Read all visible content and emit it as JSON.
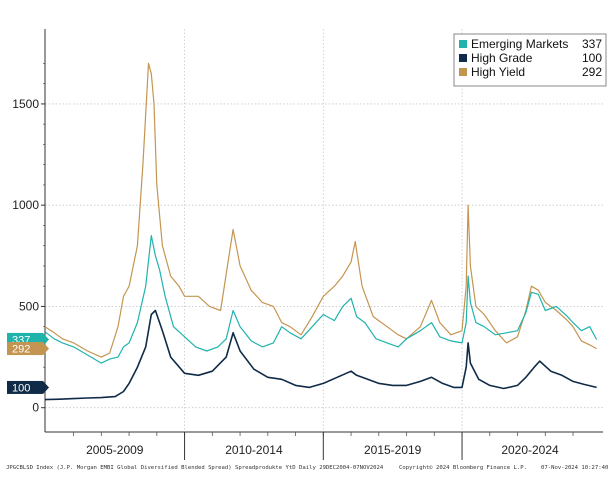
{
  "chart_data": {
    "type": "line",
    "title": "",
    "xlabel": "",
    "ylabel": "",
    "ylim": [
      -120,
      1870
    ],
    "xlim": [
      2004.97,
      2024.9
    ],
    "y_ticks": [
      0,
      500,
      1000,
      1500
    ],
    "y_tick_labels": [
      "0",
      "500",
      "1000",
      "1500"
    ],
    "periods": [
      {
        "label": "2005-2009",
        "start": 2004.97,
        "end": 2010.0
      },
      {
        "label": "2010-2014",
        "start": 2010.0,
        "end": 2015.0
      },
      {
        "label": "2015-2019",
        "start": 2015.0,
        "end": 2020.0
      },
      {
        "label": "2020-2024",
        "start": 2020.0,
        "end": 2024.9
      }
    ],
    "legend": {
      "position": "top-right"
    },
    "series": [
      {
        "name": "Emerging Markets",
        "last_value": "337",
        "color": "#1fb3ac",
        "x": [
          2004.97,
          2005.3,
          2005.6,
          2006.0,
          2006.5,
          2007.0,
          2007.3,
          2007.6,
          2007.8,
          2008.0,
          2008.3,
          2008.6,
          2008.8,
          2008.95,
          2009.1,
          2009.3,
          2009.6,
          2010.0,
          2010.4,
          2010.8,
          2011.2,
          2011.5,
          2011.75,
          2012.0,
          2012.4,
          2012.8,
          2013.2,
          2013.5,
          2013.8,
          2014.2,
          2014.6,
          2015.0,
          2015.4,
          2015.7,
          2016.0,
          2016.2,
          2016.5,
          2016.9,
          2017.3,
          2017.7,
          2018.0,
          2018.5,
          2018.9,
          2019.2,
          2019.6,
          2020.0,
          2020.15,
          2020.22,
          2020.3,
          2020.5,
          2020.8,
          2021.2,
          2021.6,
          2022.0,
          2022.3,
          2022.5,
          2022.75,
          2023.0,
          2023.4,
          2023.8,
          2024.0,
          2024.3,
          2024.6,
          2024.85
        ],
        "values": [
          375,
          340,
          320,
          300,
          260,
          220,
          240,
          250,
          300,
          320,
          420,
          600,
          850,
          750,
          680,
          550,
          400,
          350,
          300,
          280,
          300,
          340,
          480,
          400,
          330,
          300,
          320,
          400,
          370,
          340,
          400,
          460,
          430,
          500,
          540,
          450,
          420,
          340,
          320,
          300,
          340,
          380,
          420,
          350,
          330,
          320,
          420,
          650,
          520,
          420,
          400,
          360,
          370,
          380,
          470,
          570,
          560,
          480,
          500,
          450,
          420,
          380,
          400,
          337
        ]
      },
      {
        "name": "High Grade",
        "last_value": "100",
        "color": "#0f2b47",
        "x": [
          2004.97,
          2005.5,
          2006.0,
          2006.5,
          2007.0,
          2007.5,
          2007.8,
          2008.0,
          2008.3,
          2008.6,
          2008.8,
          2008.95,
          2009.2,
          2009.5,
          2010.0,
          2010.5,
          2011.0,
          2011.5,
          2011.75,
          2012.0,
          2012.5,
          2013.0,
          2013.5,
          2014.0,
          2014.5,
          2015.0,
          2015.5,
          2016.0,
          2016.2,
          2016.6,
          2017.0,
          2017.5,
          2018.0,
          2018.5,
          2018.9,
          2019.3,
          2019.7,
          2020.0,
          2020.15,
          2020.22,
          2020.3,
          2020.6,
          2021.0,
          2021.5,
          2022.0,
          2022.3,
          2022.6,
          2022.8,
          2023.2,
          2023.6,
          2024.0,
          2024.4,
          2024.85
        ],
        "values": [
          40,
          42,
          45,
          48,
          50,
          55,
          80,
          120,
          200,
          300,
          460,
          480,
          380,
          250,
          170,
          160,
          180,
          250,
          370,
          280,
          190,
          150,
          140,
          110,
          100,
          120,
          150,
          180,
          160,
          140,
          120,
          110,
          110,
          130,
          150,
          120,
          100,
          100,
          200,
          320,
          220,
          140,
          110,
          95,
          110,
          150,
          200,
          230,
          180,
          160,
          130,
          115,
          100
        ]
      },
      {
        "name": "High Yield",
        "last_value": "292",
        "color": "#c49550",
        "x": [
          2004.97,
          2005.3,
          2005.6,
          2006.0,
          2006.5,
          2007.0,
          2007.3,
          2007.6,
          2007.8,
          2008.0,
          2008.3,
          2008.5,
          2008.7,
          2008.8,
          2008.9,
          2009.0,
          2009.2,
          2009.5,
          2009.8,
          2010.0,
          2010.5,
          2010.9,
          2011.3,
          2011.6,
          2011.75,
          2012.0,
          2012.4,
          2012.8,
          2013.2,
          2013.5,
          2013.8,
          2014.2,
          2014.6,
          2015.0,
          2015.4,
          2015.7,
          2016.0,
          2016.15,
          2016.4,
          2016.8,
          2017.3,
          2017.7,
          2018.0,
          2018.5,
          2018.9,
          2019.2,
          2019.6,
          2020.0,
          2020.15,
          2020.22,
          2020.3,
          2020.5,
          2020.8,
          2021.2,
          2021.6,
          2022.0,
          2022.3,
          2022.5,
          2022.75,
          2023.0,
          2023.4,
          2023.8,
          2024.0,
          2024.3,
          2024.6,
          2024.85
        ],
        "values": [
          400,
          370,
          340,
          320,
          280,
          250,
          270,
          400,
          550,
          600,
          800,
          1200,
          1700,
          1650,
          1500,
          1100,
          800,
          650,
          600,
          550,
          550,
          500,
          480,
          750,
          880,
          700,
          580,
          520,
          500,
          420,
          400,
          360,
          450,
          550,
          600,
          650,
          720,
          820,
          600,
          450,
          400,
          360,
          340,
          400,
          530,
          420,
          360,
          380,
          600,
          1000,
          700,
          500,
          460,
          380,
          320,
          350,
          480,
          600,
          580,
          520,
          480,
          430,
          400,
          330,
          310,
          292
        ]
      }
    ]
  },
  "footer": {
    "description": "JPGCBLSD Index (J.P. Morgan EMBI Global Diversified Blended Spread) Spreadprodukte YtD  Daily 29DEC2004-07NOV2024",
    "copyright": "Copyright© 2024 Bloomberg Finance L.P.",
    "timestamp": "07-Nov-2024 10:27:40"
  }
}
